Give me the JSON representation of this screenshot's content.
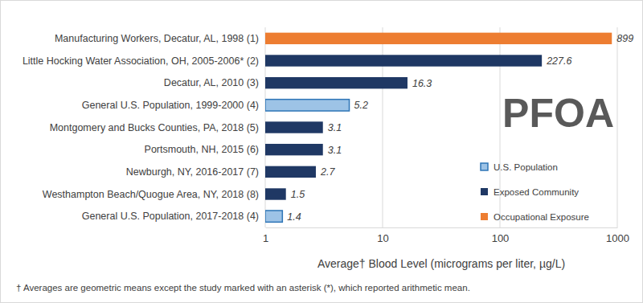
{
  "chart_data": {
    "type": "bar",
    "orientation": "horizontal",
    "title": "PFOA",
    "x_label": "Average† Blood Level (micrograms per liter, µg/L)",
    "annotations": [
      "† Averages are geometric means except the study marked with an asterisk (*), which reported arithmetic mean."
    ],
    "categories": [
      "Manufacturing Workers, Decatur, AL, 1998 (1)",
      "Little Hocking Water Association, OH, 2005-2006* (2)",
      "Decatur, AL, 2010 (3)",
      "General U.S. Population, 1999-2000 (4)",
      "Montgomery and Bucks Counties, PA, 2018 (5)",
      "Portsmouth, NH, 2015 (6)",
      "Newburgh, NY, 2016-2017 (7)",
      "Westhampton Beach/Quogue Area, NY, 2018 (8)",
      "General U.S. Population, 2017-2018 (4)"
    ],
    "series": [
      {
        "name": "U.S. Population",
        "color": "#9dc3e6",
        "values": [
          null,
          null,
          null,
          5.2,
          null,
          null,
          null,
          null,
          1.4
        ]
      },
      {
        "name": "Exposed Community",
        "color": "#1f3864",
        "values": [
          null,
          227.6,
          16.3,
          null,
          3.1,
          3.1,
          2.7,
          1.5,
          null
        ]
      },
      {
        "name": "Occupational Exposure",
        "color": "#ed7d31",
        "values": [
          899,
          null,
          null,
          null,
          null,
          null,
          null,
          null,
          null
        ]
      }
    ],
    "log": "x",
    "xlim": [
      1,
      1000
    ],
    "xticks": [
      1,
      10,
      100,
      1000
    ],
    "grid": true,
    "data_labels": true,
    "legend": "right"
  }
}
